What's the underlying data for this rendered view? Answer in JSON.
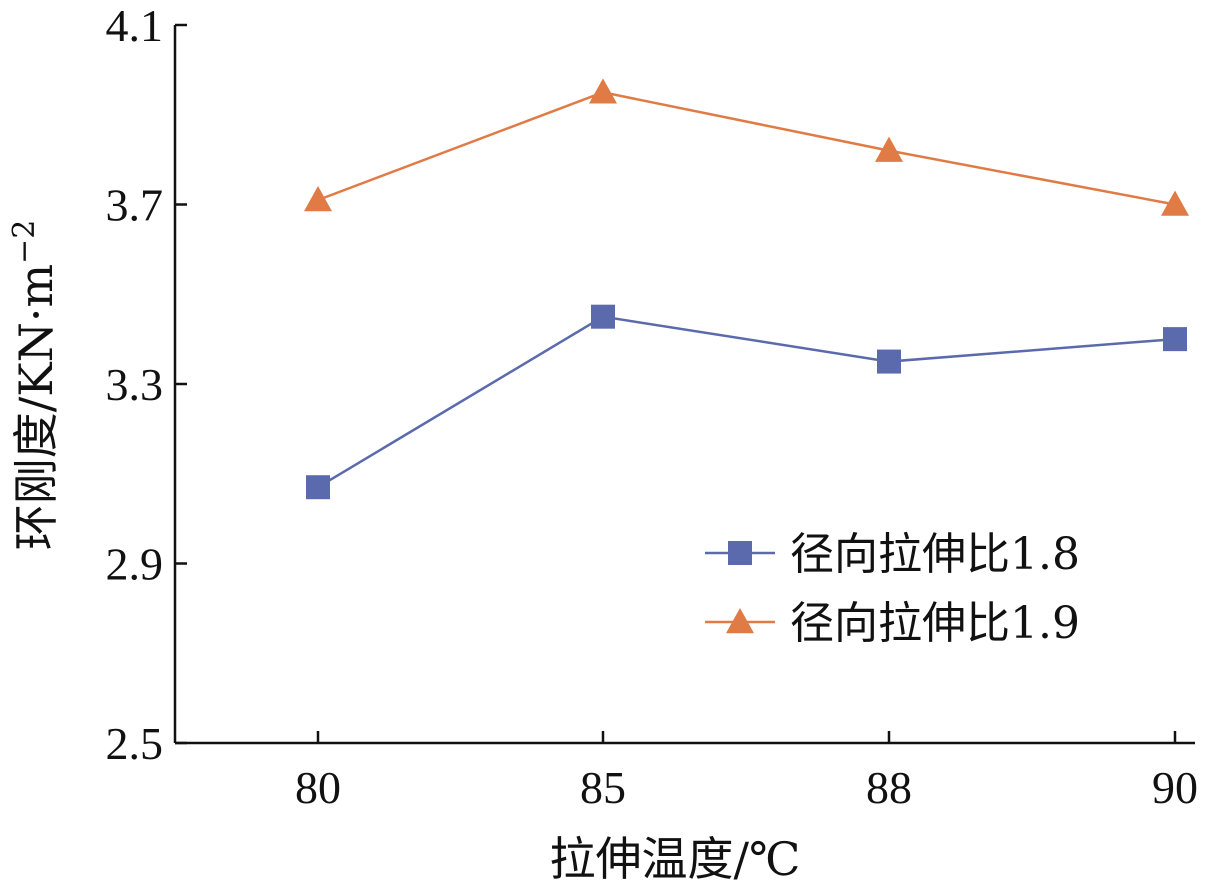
{
  "chart_data": {
    "type": "line",
    "title": "",
    "xlabel": "拉伸温度/℃",
    "ylabel": "环刚度/KN·m",
    "ylabel_sup": "−2",
    "categories": [
      "80",
      "85",
      "88",
      "90"
    ],
    "yticks": [
      "2.5",
      "2.9",
      "3.3",
      "3.7",
      "4.1"
    ],
    "ylim": [
      2.5,
      4.1
    ],
    "grid": false,
    "legend_position": "bottom-right",
    "series": [
      {
        "name": "径向拉伸比1.8",
        "values": [
          3.07,
          3.45,
          3.35,
          3.4
        ],
        "color": "#5b6aad",
        "marker": "square"
      },
      {
        "name": "径向拉伸比1.9",
        "values": [
          3.71,
          3.95,
          3.82,
          3.7
        ],
        "color": "#e07b45",
        "marker": "triangle"
      }
    ]
  }
}
